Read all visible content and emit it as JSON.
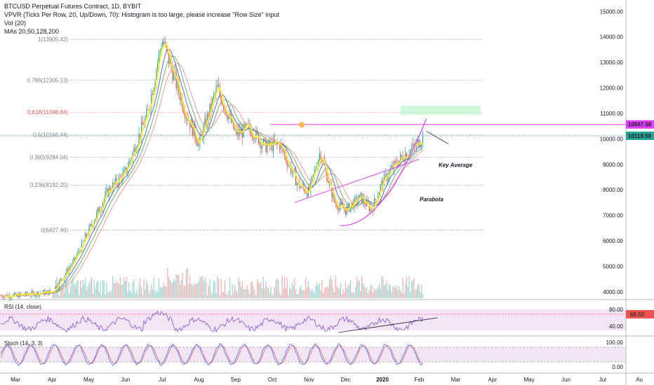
{
  "header": {
    "title": "BTCUSD Perpetual Futures Contract, 1D, BYBIT",
    "vpvr": "VPVR (Ticks Per Row, 20, Up/Down, 70): Histogram is too large, please increase \"Row Size\" input",
    "vol": "Vol (20)",
    "mas": "MAs 20,50,128,200"
  },
  "colors": {
    "up": "#26a69a",
    "down": "#ef5350",
    "ma20": "#ffeb3b",
    "ma50": "#5c6bc0",
    "ma128": "#66bb6a",
    "ma200": "#ef9a9a",
    "rsi": "#7e57c2",
    "fib": "#787b86",
    "fib618": "#ef5350",
    "trend": "#e040fb"
  },
  "chart_data": [
    {
      "type": "candlestick",
      "ylim": [
        3750,
        15200
      ],
      "yticks": [
        "4000.00",
        "5000.00",
        "6000.00",
        "7000.00",
        "8000.00",
        "9000.00",
        "10000.00",
        "11000.00",
        "12000.00",
        "13000.00",
        "14000.00",
        "15000.00"
      ],
      "yticks_values": [
        4000,
        5000,
        6000,
        7000,
        8000,
        9000,
        10000,
        11000,
        12000,
        13000,
        14000,
        15000
      ],
      "months": [
        "Mar",
        "Apr",
        "May",
        "Jun",
        "Jul",
        "Aug",
        "Sep",
        "Oct",
        "Nov",
        "Dec",
        "2020",
        "Feb",
        "Mar",
        "Apr",
        "May",
        "Jun",
        "Jul",
        "Au"
      ],
      "price_labels": [
        {
          "text": "10567.50",
          "value": 10567.5,
          "color": "#e040fb"
        },
        {
          "text": "10119.50",
          "value": 10119.5,
          "color": "#26a69a"
        }
      ],
      "fib_levels": [
        {
          "label": "1(13905.42)",
          "value": 13905.42
        },
        {
          "label": "0.786(12305.13)",
          "value": 12305.13
        },
        {
          "label": "0.618(11048.84)",
          "value": 11048.84
        },
        {
          "label": "0.5(10166.44)",
          "value": 10166.44
        },
        {
          "label": "0.382(9284.04)",
          "value": 9284.04
        },
        {
          "label": "0.236(8192.25)",
          "value": 8192.25
        },
        {
          "label": "0(6427.46)",
          "value": 6427.46
        }
      ],
      "path_months": [
        0,
        1,
        1.6,
        2.5,
        3.0,
        3.6,
        4.0,
        4.6,
        5.0,
        5.5,
        6.0,
        6.4,
        6.8,
        7.2,
        7.7,
        8.0,
        8.3,
        8.7,
        9.0,
        9.4,
        9.7,
        10.0,
        10.3,
        10.6,
        10.9,
        11.1
      ],
      "path_price": [
        3850,
        4000,
        5200,
        7900,
        8700,
        11000,
        13905,
        11200,
        9800,
        12000,
        10200,
        10400,
        9700,
        9800,
        8200,
        7900,
        9500,
        7500,
        7200,
        7700,
        7200,
        8300,
        8900,
        9400,
        9700,
        10100
      ],
      "annotations": [
        "Key Average",
        "Parabola"
      ]
    },
    {
      "type": "line",
      "name": "RSI (14, close)",
      "yticks": [
        "80.00",
        "40.00"
      ],
      "yticks_values": [
        80,
        40
      ],
      "ylim": [
        20,
        100
      ],
      "current": "68.50",
      "current_value": 68.5
    },
    {
      "type": "line",
      "name": "Stoch (14, 3, 3)",
      "yticks": [
        "100.00",
        "0.00"
      ],
      "yticks_values": [
        100,
        0
      ],
      "ylim": [
        -20,
        120
      ]
    }
  ]
}
